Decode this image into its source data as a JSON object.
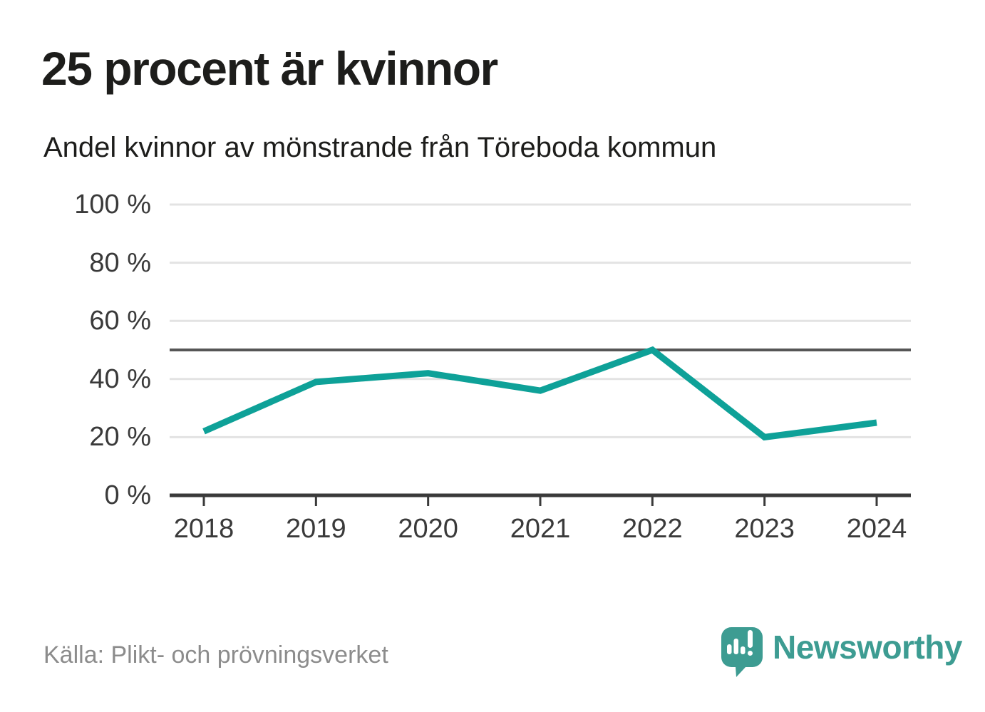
{
  "page": {
    "title": "25 procent är kvinnor",
    "subtitle": "Andel kvinnor av mönstrande från Töreboda kommun",
    "source": "Källa: Plikt- och prövningsverket",
    "brand": "Newsworthy"
  },
  "colors": {
    "background": "#ffffff",
    "line": "#0ea198",
    "brand_teal": "#3d9c92",
    "title_text": "#1d1d1b",
    "axis_text": "#3a3a3a",
    "grid": "#e3e3e3",
    "reference_line": "#565656",
    "axis_line": "#3a3a3a",
    "source_text": "#8c8c8c"
  },
  "chart_data": {
    "type": "line",
    "title": "25 procent är kvinnor",
    "subtitle": "Andel kvinnor av mönstrande från Töreboda kommun",
    "x": [
      2018,
      2019,
      2020,
      2021,
      2022,
      2023,
      2024
    ],
    "xtick_labels": [
      "2018",
      "2019",
      "2020",
      "2021",
      "2022",
      "2023",
      "2024"
    ],
    "series": [
      {
        "name": "Andel kvinnor av mönstrande",
        "values": [
          22,
          39,
          42,
          36,
          50,
          20,
          25
        ]
      }
    ],
    "unit": "%",
    "ylim": [
      0,
      100
    ],
    "yticks": [
      0,
      20,
      40,
      60,
      80,
      100
    ],
    "ytick_labels": [
      "0 %",
      "20 %",
      "40 %",
      "60 %",
      "80 %",
      "100 %"
    ],
    "reference_line": 50,
    "grid": "horizontal",
    "legend": "none",
    "source": "Källa: Plikt- och prövningsverket"
  }
}
